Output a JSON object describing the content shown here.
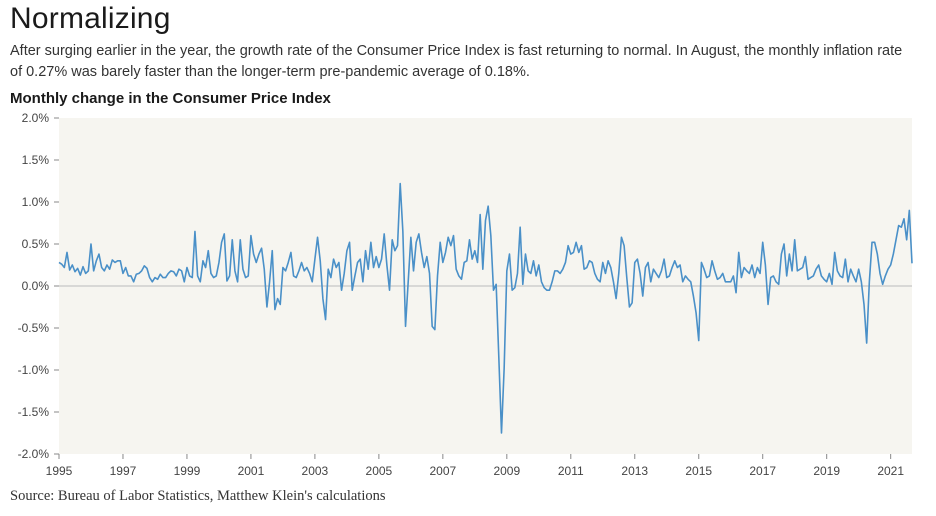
{
  "header": {
    "title": "Normalizing",
    "subtitle": "After surging earlier in the year, the growth rate of the Consumer Price Index is fast returning to normal. In August, the monthly inflation rate of 0.27% was barely faster than the longer-term pre-pandemic average of 0.18%."
  },
  "chart_data": {
    "type": "line",
    "title": "Monthly change in the Consumer Price Index",
    "xlabel": "",
    "ylabel": "",
    "ylim": [
      -2.0,
      2.0
    ],
    "xlim": [
      1995,
      2021.667
    ],
    "y_ticks": [
      2.0,
      1.5,
      1.0,
      0.5,
      0.0,
      -0.5,
      -1.0,
      -1.5,
      -2.0
    ],
    "y_tick_labels": [
      "2.0%",
      "1.5%",
      "1.0%",
      "0.5%",
      "0.0%",
      "-0.5%",
      "-1.0%",
      "-1.5%",
      "-2.0%"
    ],
    "x_ticks": [
      1995,
      1997,
      1999,
      2001,
      2003,
      2005,
      2007,
      2009,
      2011,
      2013,
      2015,
      2017,
      2019,
      2021
    ],
    "x_tick_labels": [
      "1995",
      "1997",
      "1999",
      "2001",
      "2003",
      "2005",
      "2007",
      "2009",
      "2011",
      "2013",
      "2015",
      "2017",
      "2019",
      "2021"
    ],
    "grid": "zero-line only",
    "colors": {
      "line": "#4a90c8",
      "plot_bg": "#f6f5f0",
      "zero_line": "#bbbbbb"
    },
    "series": [
      {
        "start": "1995-01",
        "frequency": "monthly",
        "values": [
          0.28,
          0.26,
          0.22,
          0.4,
          0.19,
          0.25,
          0.17,
          0.21,
          0.13,
          0.23,
          0.15,
          0.18,
          0.5,
          0.18,
          0.3,
          0.38,
          0.22,
          0.18,
          0.25,
          0.2,
          0.31,
          0.28,
          0.3,
          0.3,
          0.15,
          0.22,
          0.12,
          0.12,
          0.05,
          0.14,
          0.15,
          0.18,
          0.24,
          0.21,
          0.1,
          0.05,
          0.1,
          0.08,
          0.14,
          0.1,
          0.1,
          0.15,
          0.18,
          0.17,
          0.12,
          0.2,
          0.18,
          0.05,
          0.22,
          0.12,
          0.1,
          0.65,
          0.12,
          0.05,
          0.3,
          0.22,
          0.42,
          0.15,
          0.1,
          0.12,
          0.28,
          0.52,
          0.62,
          0.06,
          0.12,
          0.55,
          0.18,
          0.05,
          0.55,
          0.2,
          0.1,
          0.12,
          0.6,
          0.38,
          0.28,
          0.38,
          0.45,
          0.2,
          -0.25,
          0.05,
          0.42,
          -0.28,
          -0.15,
          -0.22,
          0.22,
          0.18,
          0.28,
          0.4,
          0.12,
          0.1,
          0.18,
          0.28,
          0.18,
          0.22,
          0.15,
          0.05,
          0.32,
          0.58,
          0.3,
          -0.15,
          -0.4,
          0.2,
          0.1,
          0.32,
          0.22,
          0.28,
          -0.05,
          0.15,
          0.42,
          0.52,
          -0.05,
          0.12,
          0.28,
          0.32,
          0.05,
          0.42,
          0.2,
          0.52,
          0.22,
          0.35,
          0.22,
          0.32,
          0.62,
          0.25,
          -0.05,
          0.55,
          0.42,
          0.48,
          1.22,
          0.65,
          -0.48,
          0.05,
          0.58,
          0.18,
          0.52,
          0.62,
          0.4,
          0.22,
          0.35,
          0.15,
          -0.48,
          -0.52,
          0.12,
          0.52,
          0.28,
          0.4,
          0.58,
          0.48,
          0.6,
          0.2,
          0.12,
          0.08,
          0.28,
          0.3,
          0.55,
          0.32,
          0.42,
          0.28,
          0.85,
          0.2,
          0.78,
          0.95,
          0.6,
          -0.05,
          0.02,
          -0.85,
          -1.75,
          -0.98,
          0.18,
          0.38,
          -0.05,
          -0.02,
          0.15,
          0.7,
          0.02,
          0.38,
          0.18,
          0.15,
          0.3,
          0.12,
          0.25,
          0.05,
          -0.02,
          -0.05,
          -0.05,
          0.05,
          0.18,
          0.18,
          0.15,
          0.2,
          0.28,
          0.48,
          0.38,
          0.4,
          0.52,
          0.4,
          0.48,
          0.2,
          0.22,
          0.3,
          0.28,
          0.15,
          0.08,
          0.05,
          0.28,
          0.15,
          0.3,
          0.22,
          0.05,
          -0.15,
          0.15,
          0.58,
          0.48,
          0.1,
          -0.25,
          -0.2,
          0.28,
          0.32,
          0.15,
          -0.12,
          0.22,
          0.28,
          0.05,
          0.2,
          0.15,
          0.1,
          0.18,
          0.32,
          0.1,
          0.12,
          0.22,
          0.3,
          0.22,
          0.25,
          0.05,
          0.12,
          0.08,
          0.05,
          -0.12,
          -0.32,
          -0.65,
          0.28,
          0.2,
          0.1,
          0.12,
          0.3,
          0.18,
          0.08,
          0.1,
          0.15,
          0.05,
          0.05,
          0.05,
          0.12,
          -0.08,
          0.4,
          0.1,
          0.22,
          0.18,
          0.15,
          0.25,
          0.1,
          0.22,
          0.15,
          0.52,
          0.25,
          -0.22,
          0.1,
          0.12,
          0.05,
          0.02,
          0.38,
          0.5,
          0.12,
          0.38,
          0.18,
          0.55,
          0.18,
          0.2,
          0.22,
          0.35,
          0.08,
          0.1,
          0.12,
          0.2,
          0.25,
          0.12,
          0.08,
          0.05,
          0.15,
          0.02,
          0.4,
          0.18,
          0.12,
          0.1,
          0.32,
          0.05,
          0.2,
          0.12,
          0.05,
          0.2,
          0.05,
          -0.22,
          -0.68,
          0.05,
          0.52,
          0.52,
          0.38,
          0.15,
          0.02,
          0.12,
          0.2,
          0.25,
          0.38,
          0.55,
          0.72,
          0.7,
          0.8,
          0.55,
          0.9,
          0.27
        ]
      }
    ]
  },
  "footer": {
    "source": "Source: Bureau of Labor Statistics, Matthew Klein's calculations"
  }
}
